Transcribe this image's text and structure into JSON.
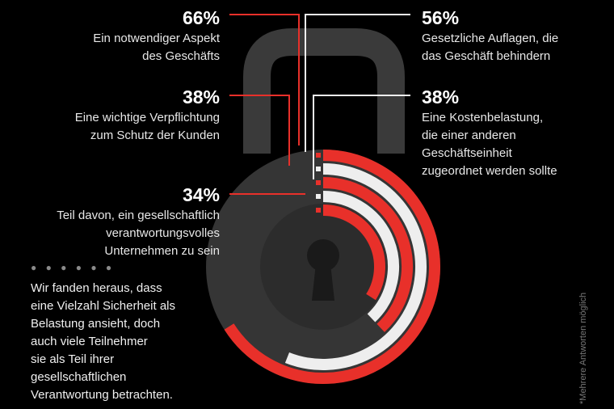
{
  "chart_data": {
    "type": "radial-bar",
    "series": [
      {
        "value": 66,
        "display": "66%",
        "label_lines": [
          "Ein notwendiger Aspekt",
          "des Geschäfts"
        ],
        "color": "#e8302a"
      },
      {
        "value": 56,
        "display": "56%",
        "label_lines": [
          "Gesetzliche Auflagen, die",
          "das Geschäft behindern"
        ],
        "color": "#eeeeee"
      },
      {
        "value": 38,
        "display": "38%",
        "label_lines": [
          "Eine wichtige Verpflichtung",
          "zum Schutz der Kunden"
        ],
        "color": "#e8302a"
      },
      {
        "value": 38,
        "display": "38%",
        "label_lines": [
          "Eine Kostenbelastung,",
          "die einer anderen",
          "Geschäftseinheit",
          "zugeordnet werden sollte"
        ],
        "color": "#eeeeee"
      },
      {
        "value": 34,
        "display": "34%",
        "label_lines": [
          "Teil davon, ein gesellschaftlich",
          "verantwortungsvolles",
          "Unternehmen zu sein"
        ],
        "color": "#e8302a"
      }
    ],
    "max": 100
  },
  "note_lines": [
    "Wir fanden heraus, dass",
    "eine Vielzahl Sicherheit als",
    "Belastung ansieht, doch",
    "auch viele Teilnehmer",
    "sie als Teil ihrer",
    "gesellschaftlichen",
    "Verantwortung betrachten."
  ],
  "side_note": "*Mehrere Antworten möglich",
  "dots": "● ● ● ● ● ●",
  "colors": {
    "accent": "#e8302a",
    "light": "#eeeeee",
    "lock_body": "#353535",
    "lock_shackle": "#3a3a3a"
  }
}
